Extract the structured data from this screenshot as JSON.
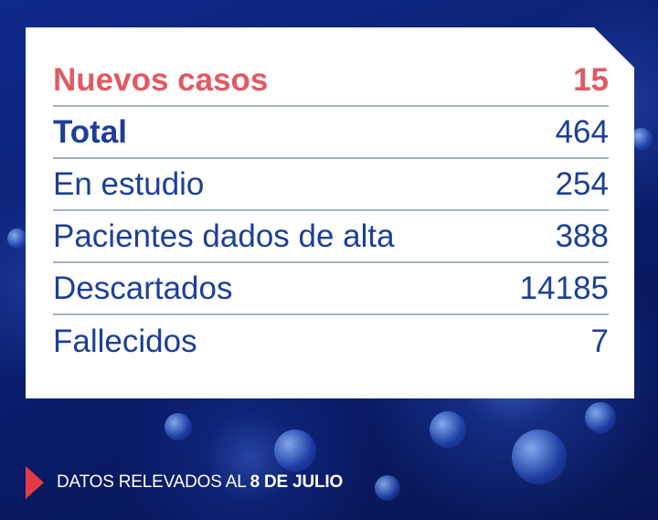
{
  "stats": [
    {
      "label": "Nuevos casos",
      "value": "15"
    },
    {
      "label": "Total",
      "value": "464"
    },
    {
      "label": "En estudio",
      "value": "254"
    },
    {
      "label": "Pacientes dados de alta",
      "value": "388"
    },
    {
      "label": "Descartados",
      "value": "14185"
    },
    {
      "label": "Fallecidos",
      "value": "7"
    }
  ],
  "footer": {
    "prefix": "DATOS RELEVADOS AL",
    "date": "8 DE JULIO"
  },
  "colors": {
    "highlight": "#e05a64",
    "text": "#1c3f96",
    "background": "#0b1f6b",
    "arrow": "#e63946"
  }
}
